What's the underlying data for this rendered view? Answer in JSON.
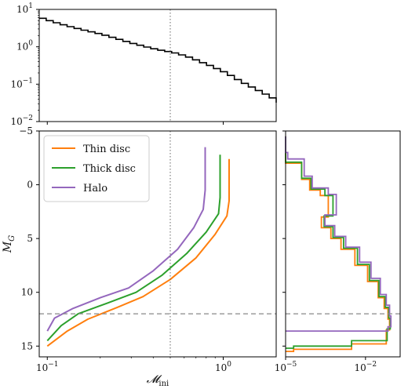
{
  "chart_data": [
    {
      "type": "line",
      "panel": "top",
      "style": "step",
      "xscale": "log",
      "yscale": "log",
      "xlim": [
        0.09,
        2.0
      ],
      "ylim": [
        0.01,
        10
      ],
      "yticks": [
        {
          "v": 0.01,
          "base": "10",
          "exp": "−2"
        },
        {
          "v": 0.1,
          "base": "10",
          "exp": "−1"
        },
        {
          "v": 1,
          "base": "10",
          "exp": "0"
        },
        {
          "v": 10,
          "base": "10",
          "exp": "1"
        }
      ],
      "reference_vline": 0.5,
      "series": [
        {
          "color": "#000000",
          "x": [
            0.09,
            0.1,
            0.12,
            0.15,
            0.2,
            0.3,
            0.4,
            0.5,
            0.6,
            0.8,
            1.0,
            1.2,
            1.5,
            1.8,
            2.0
          ],
          "y": [
            5.8,
            4.9,
            3.8,
            2.9,
            2.1,
            1.2,
            0.85,
            0.7,
            0.55,
            0.32,
            0.2,
            0.12,
            0.07,
            0.045,
            0.032
          ]
        }
      ]
    },
    {
      "type": "line",
      "panel": "bottom-left",
      "xscale": "log",
      "xlim": [
        0.09,
        2.0
      ],
      "ylim": [
        16,
        -5
      ],
      "xlabel": "𝓜",
      "xlabel_sub": "ini",
      "ylabel": "M",
      "ylabel_sub": "G",
      "xticks": [
        {
          "v": 0.1,
          "base": "10",
          "exp": "−1"
        },
        {
          "v": 1,
          "base": "10",
          "exp": "0"
        }
      ],
      "yticks": [
        {
          "v": -5,
          "label": "−5"
        },
        {
          "v": 0,
          "label": "0"
        },
        {
          "v": 5,
          "label": "5"
        },
        {
          "v": 10,
          "label": "10"
        },
        {
          "v": 15,
          "label": "15"
        }
      ],
      "reference_vline": 0.5,
      "reference_hline": 12,
      "legend_position": "top-left",
      "series": [
        {
          "name": "Thin disc",
          "color": "#ff7f0e",
          "x": [
            0.1,
            0.13,
            0.17,
            0.25,
            0.35,
            0.5,
            0.7,
            0.9,
            1.05,
            1.08,
            1.08
          ],
          "y": [
            15.0,
            13.6,
            12.5,
            11.4,
            10.4,
            8.8,
            6.8,
            4.6,
            2.9,
            1.5,
            -2.4
          ]
        },
        {
          "name": "Thick disc",
          "color": "#2ca02c",
          "x": [
            0.1,
            0.12,
            0.15,
            0.22,
            0.32,
            0.45,
            0.62,
            0.8,
            0.94,
            0.96,
            0.96
          ],
          "y": [
            14.5,
            13.1,
            12.0,
            11.0,
            10.0,
            8.4,
            6.4,
            4.4,
            2.7,
            1.2,
            -2.8
          ]
        },
        {
          "name": "Halo",
          "color": "#9467bd",
          "x": [
            0.1,
            0.11,
            0.14,
            0.2,
            0.29,
            0.4,
            0.55,
            0.68,
            0.77,
            0.79,
            0.79
          ],
          "y": [
            13.6,
            12.4,
            11.5,
            10.5,
            9.6,
            8.0,
            6.0,
            4.0,
            2.3,
            0.5,
            -3.5
          ]
        }
      ]
    },
    {
      "type": "line",
      "panel": "bottom-right",
      "style": "step",
      "xscale": "log",
      "xlim": [
        1e-05,
        0.2
      ],
      "ylim": [
        16,
        -5
      ],
      "xticks": [
        {
          "v": 1e-05,
          "base": "10",
          "exp": "−5"
        },
        {
          "v": 0.01,
          "base": "10",
          "exp": "−2"
        }
      ],
      "reference_hline": 12,
      "series": [
        {
          "name": "Thin disc",
          "color": "#ff7f0e",
          "x": [
            1e-05,
            1e-05,
            4e-05,
            8e-05,
            0.0002,
            0.0004,
            0.00022,
            0.0005,
            0.0012,
            0.004,
            0.012,
            0.03,
            0.05,
            0.07,
            0.08,
            0.06,
            0.003,
            2e-05,
            1e-05
          ],
          "y": [
            -4.5,
            -2.5,
            -2.0,
            -0.5,
            0.5,
            1.0,
            3.0,
            4.0,
            5.0,
            6.0,
            7.5,
            9.0,
            10.5,
            11.5,
            12.5,
            13.5,
            14.8,
            15.3,
            15.5
          ]
        },
        {
          "name": "Thick disc",
          "color": "#2ca02c",
          "x": [
            1e-05,
            1e-05,
            4e-05,
            9e-05,
            0.0003,
            0.0006,
            0.00028,
            0.0006,
            0.0015,
            0.005,
            0.014,
            0.032,
            0.055,
            0.075,
            0.085,
            0.065,
            0.003,
            2e-05,
            1e-05
          ],
          "y": [
            -4.5,
            -2.7,
            -2.1,
            -0.6,
            0.4,
            1.0,
            2.9,
            3.9,
            4.9,
            5.9,
            7.4,
            8.9,
            10.4,
            11.4,
            12.4,
            13.4,
            14.5,
            15.0,
            15.2
          ]
        },
        {
          "name": "Halo",
          "color": "#9467bd",
          "x": [
            1e-05,
            1.2e-05,
            5e-05,
            0.0001,
            0.0004,
            0.0008,
            0.0003,
            0.0007,
            0.0018,
            0.006,
            0.016,
            0.036,
            0.06,
            0.08,
            0.09,
            0.07,
            0.002,
            1e-05
          ],
          "y": [
            -4.5,
            -3.0,
            -2.4,
            -0.8,
            0.3,
            0.9,
            2.8,
            3.8,
            4.8,
            5.8,
            7.2,
            8.7,
            10.2,
            11.2,
            12.2,
            13.2,
            13.6,
            13.6
          ]
        }
      ]
    }
  ]
}
